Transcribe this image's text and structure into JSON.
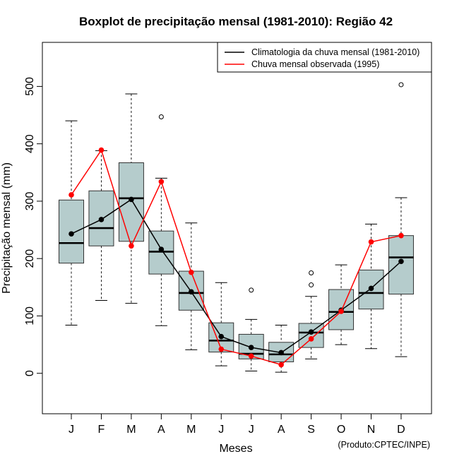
{
  "chart_data": {
    "type": "boxplot",
    "title": "Boxplot de precipitação mensal (1981-2010): Região 42",
    "xlabel": "Meses",
    "ylabel": "Precipitação mensal (mm)",
    "ylim": [
      -70,
      550
    ],
    "yticks": [
      0,
      100,
      200,
      300,
      400,
      500
    ],
    "categories": [
      "J",
      "F",
      "M",
      "A",
      "M",
      "J",
      "J",
      "A",
      "S",
      "O",
      "N",
      "D"
    ],
    "box_color": "#b5cccc",
    "boxes": [
      {
        "whisker_low": 84,
        "q1": 192,
        "median": 227,
        "q3": 302,
        "whisker_high": 440,
        "outliers": []
      },
      {
        "whisker_low": 127,
        "q1": 222,
        "median": 253,
        "q3": 318,
        "whisker_high": 388,
        "outliers": []
      },
      {
        "whisker_low": 122,
        "q1": 230,
        "median": 305,
        "q3": 367,
        "whisker_high": 487,
        "outliers": []
      },
      {
        "whisker_low": 83,
        "q1": 173,
        "median": 212,
        "q3": 248,
        "whisker_high": 340,
        "outliers": [
          447
        ]
      },
      {
        "whisker_low": 41,
        "q1": 110,
        "median": 140,
        "q3": 178,
        "whisker_high": 262,
        "outliers": []
      },
      {
        "whisker_low": 13,
        "q1": 37,
        "median": 57,
        "q3": 88,
        "whisker_high": 158,
        "outliers": []
      },
      {
        "whisker_low": 4,
        "q1": 25,
        "median": 34,
        "q3": 68,
        "whisker_high": 94,
        "outliers": [
          145
        ]
      },
      {
        "whisker_low": 2,
        "q1": 20,
        "median": 33,
        "q3": 54,
        "whisker_high": 84,
        "outliers": []
      },
      {
        "whisker_low": 25,
        "q1": 45,
        "median": 71,
        "q3": 87,
        "whisker_high": 134,
        "outliers": [
          154,
          175
        ]
      },
      {
        "whisker_low": 50,
        "q1": 76,
        "median": 107,
        "q3": 146,
        "whisker_high": 189,
        "outliers": []
      },
      {
        "whisker_low": 43,
        "q1": 112,
        "median": 140,
        "q3": 180,
        "whisker_high": 260,
        "outliers": []
      },
      {
        "whisker_low": 29,
        "q1": 138,
        "median": 202,
        "q3": 240,
        "whisker_high": 306,
        "outliers": [
          503
        ]
      }
    ],
    "series": [
      {
        "name": "Climatologia da chuva mensal (1981-2010)",
        "color": "#000000",
        "values": [
          243,
          268,
          303,
          216,
          142,
          64,
          45,
          36,
          72,
          110,
          148,
          195
        ]
      },
      {
        "name": "Chuva mensal observada (1995)",
        "color": "#ff0000",
        "values": [
          311,
          389,
          222,
          334,
          176,
          42,
          30,
          15,
          60,
          108,
          229,
          240
        ]
      }
    ],
    "legend_position": "top-right",
    "credit": "(Produto:CPTEC/INPE)"
  }
}
